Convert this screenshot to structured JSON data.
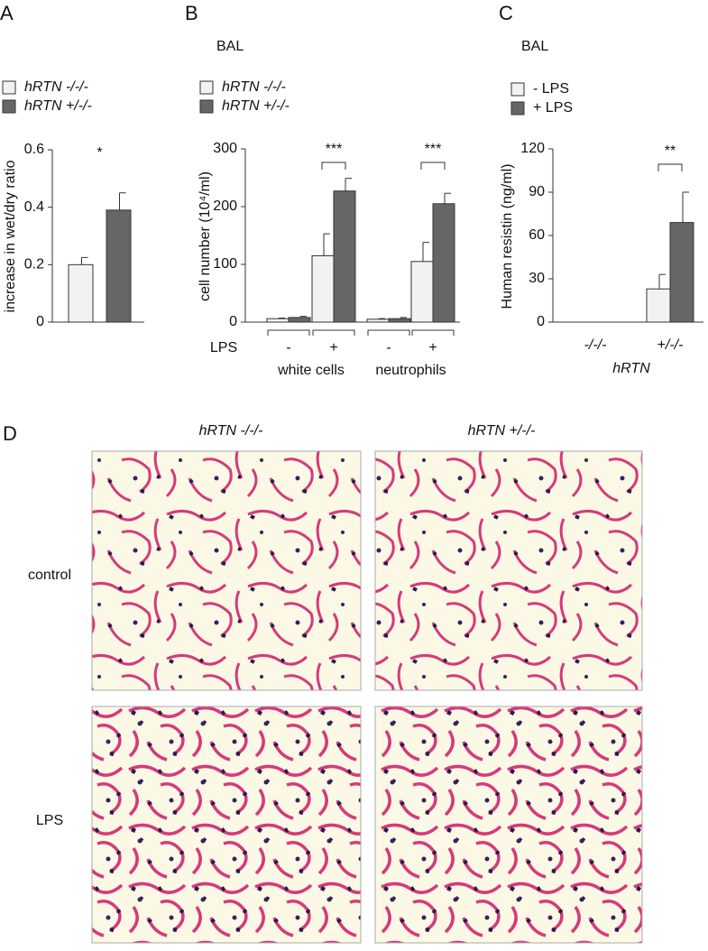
{
  "chart_data": [
    {
      "type": "bar",
      "panel": "A",
      "ylabel": "increase in wet/dry ratio",
      "categories": [
        null
      ],
      "series": [
        {
          "name": "hRTN -/-/-",
          "color": "#f2f2f2",
          "values": [
            0.2
          ],
          "errors": [
            0.025
          ]
        },
        {
          "name": "hRTN +/-/-",
          "color": "#666666",
          "values": [
            0.39
          ],
          "errors": [
            0.06
          ]
        }
      ],
      "ylim": [
        0,
        0.6
      ],
      "yticks": [
        0,
        0.2,
        0.4,
        0.6
      ],
      "annotations": [
        "*"
      ]
    },
    {
      "type": "bar",
      "panel": "B",
      "title": "BAL",
      "ylabel": "cell number (10⁴/ml)",
      "xlabel": "LPS",
      "categories": [
        "-",
        "+",
        "-",
        "+"
      ],
      "groups": [
        "white cells",
        "neutrophils"
      ],
      "series": [
        {
          "name": "hRTN -/-/-",
          "color": "#f2f2f2",
          "values": [
            6,
            115,
            5,
            105
          ],
          "errors": [
            1,
            38,
            1,
            33
          ]
        },
        {
          "name": "hRTN +/-/-",
          "color": "#666666",
          "values": [
            8,
            227,
            6,
            205
          ],
          "errors": [
            2,
            22,
            2,
            18
          ]
        }
      ],
      "ylim": [
        0,
        300
      ],
      "yticks": [
        0,
        100,
        200,
        300
      ],
      "annotations": [
        "***",
        "***"
      ]
    },
    {
      "type": "bar",
      "panel": "C",
      "title": "BAL",
      "ylabel": "Human resistin (ng/ml)",
      "xlabel": "hRTN",
      "categories": [
        "-/-/-",
        "+/-/-"
      ],
      "series": [
        {
          "name": "- LPS",
          "color": "#f2f2f2",
          "values": [
            0,
            23
          ],
          "errors": [
            0,
            10
          ]
        },
        {
          "name": "+ LPS",
          "color": "#666666",
          "values": [
            0,
            69
          ],
          "errors": [
            0,
            21
          ]
        }
      ],
      "ylim": [
        0,
        120
      ],
      "yticks": [
        0,
        30,
        60,
        90,
        120
      ],
      "annotations": [
        "**"
      ]
    }
  ],
  "panel_d": {
    "panel": "D",
    "columns": [
      "hRTN -/-/-",
      "hRTN +/-/-"
    ],
    "rows": [
      "control",
      "LPS"
    ]
  }
}
